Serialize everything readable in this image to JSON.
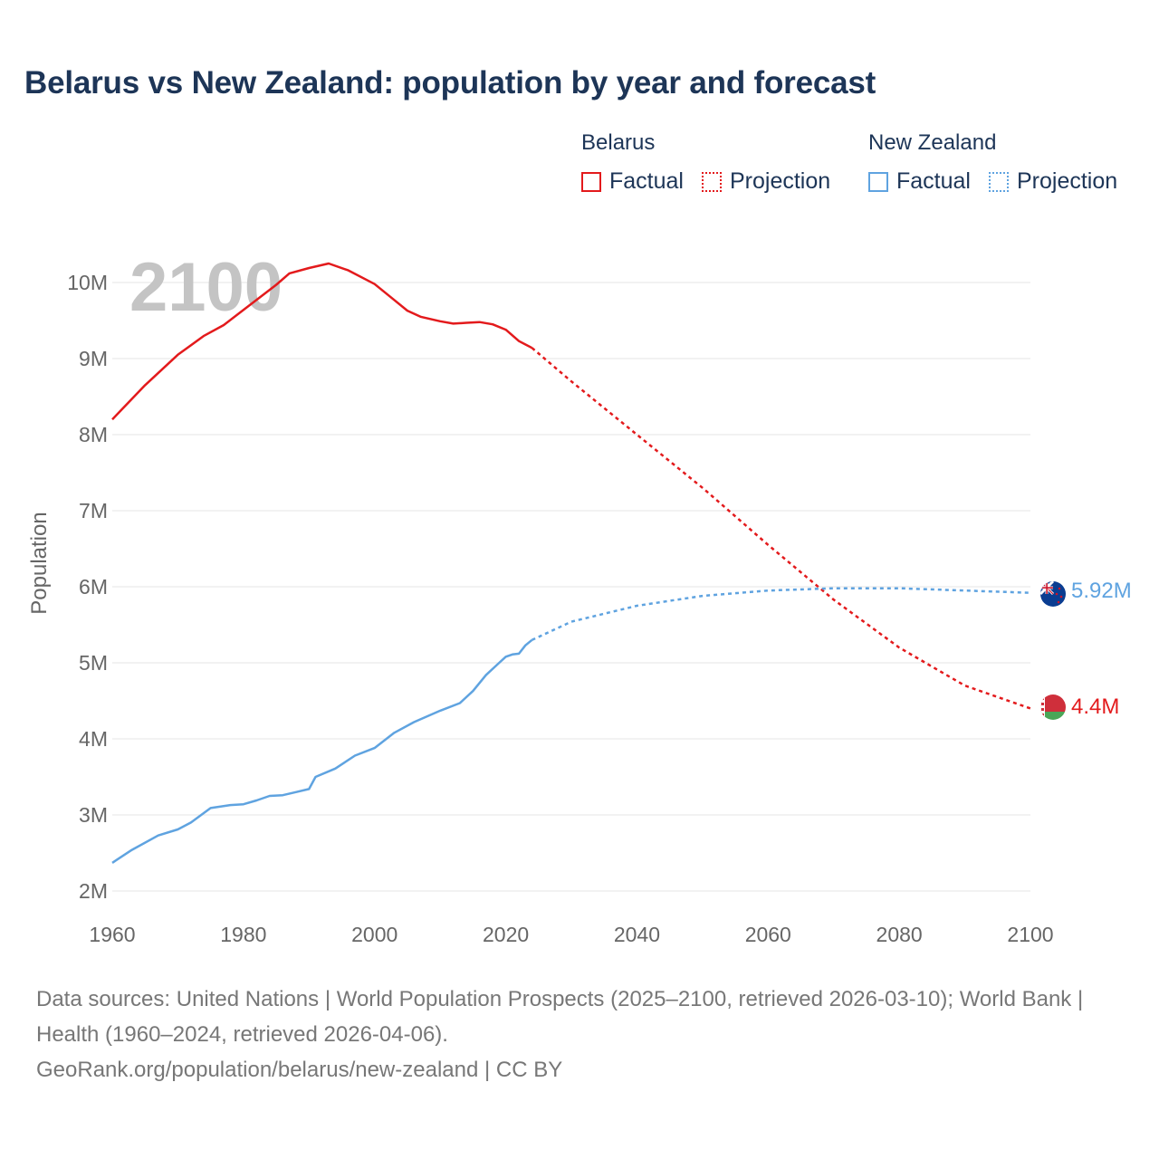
{
  "title": "Belarus vs New Zealand: population by year and forecast",
  "legend": {
    "groups": [
      {
        "name": "Belarus",
        "color": "#e31a1c",
        "factual": "Factual",
        "projection": "Projection"
      },
      {
        "name": "New Zealand",
        "color": "#5fa3e0",
        "factual": "Factual",
        "projection": "Projection"
      }
    ]
  },
  "footer": {
    "sources": "Data sources: United Nations | World Population Prospects (2025–2100, retrieved 2026-03-10); World Bank | Health (1960–2024, retrieved 2026-04-06).",
    "credit": "GeoRank.org/population/belarus/new-zealand | CC BY"
  },
  "chart_data": {
    "type": "line",
    "title": "Belarus vs New Zealand: population by year and forecast",
    "xlabel": "",
    "ylabel": "Population",
    "xlim": [
      1960,
      2100
    ],
    "ylim": [
      2000000,
      10300000
    ],
    "x_ticks": [
      1960,
      1980,
      2000,
      2020,
      2040,
      2060,
      2080,
      2100
    ],
    "x_tick_labels": [
      "1960",
      "1980",
      "2000",
      "2020",
      "2040",
      "2060",
      "2080",
      "2100"
    ],
    "y_ticks": [
      2000000,
      3000000,
      4000000,
      5000000,
      6000000,
      7000000,
      8000000,
      9000000,
      10000000
    ],
    "y_tick_labels": [
      "2M",
      "3M",
      "4M",
      "5M",
      "6M",
      "7M",
      "8M",
      "9M",
      "10M"
    ],
    "year_display": "2100",
    "grid": true,
    "series": [
      {
        "name": "Belarus",
        "color": "#e31a1c",
        "end_label": "4.4M",
        "factual": {
          "x": [
            1960,
            1965,
            1970,
            1974,
            1977,
            1980,
            1985,
            1987,
            1990,
            1993,
            1996,
            2000,
            2003,
            2005,
            2007,
            2010,
            2012,
            2014,
            2016,
            2018,
            2020,
            2022,
            2024
          ],
          "y": [
            8200000,
            8650000,
            9050000,
            9300000,
            9440000,
            9640000,
            9970000,
            10120000,
            10190000,
            10250000,
            10160000,
            9980000,
            9770000,
            9630000,
            9550000,
            9490000,
            9460000,
            9470000,
            9480000,
            9450000,
            9380000,
            9230000,
            9140000
          ]
        },
        "projection": {
          "x": [
            2024,
            2030,
            2040,
            2050,
            2060,
            2070,
            2080,
            2090,
            2100
          ],
          "y": [
            9140000,
            8700000,
            8000000,
            7300000,
            6550000,
            5830000,
            5200000,
            4700000,
            4400000
          ]
        }
      },
      {
        "name": "New Zealand",
        "color": "#5fa3e0",
        "end_label": "5.92M",
        "factual": {
          "x": [
            1960,
            1963,
            1967,
            1970,
            1972,
            1975,
            1978,
            1980,
            1982,
            1984,
            1986,
            1988,
            1990,
            1991,
            1994,
            1997,
            2000,
            2003,
            2006,
            2010,
            2013,
            2015,
            2017,
            2019,
            2020,
            2021,
            2022,
            2023,
            2024
          ],
          "y": [
            2370000,
            2540000,
            2730000,
            2810000,
            2900000,
            3090000,
            3130000,
            3140000,
            3190000,
            3250000,
            3260000,
            3300000,
            3340000,
            3500000,
            3610000,
            3780000,
            3880000,
            4080000,
            4220000,
            4370000,
            4470000,
            4630000,
            4840000,
            5000000,
            5080000,
            5110000,
            5120000,
            5230000,
            5300000
          ]
        },
        "projection": {
          "x": [
            2024,
            2030,
            2040,
            2050,
            2060,
            2070,
            2080,
            2090,
            2100
          ],
          "y": [
            5300000,
            5540000,
            5750000,
            5880000,
            5950000,
            5980000,
            5980000,
            5950000,
            5920000
          ]
        }
      }
    ]
  }
}
